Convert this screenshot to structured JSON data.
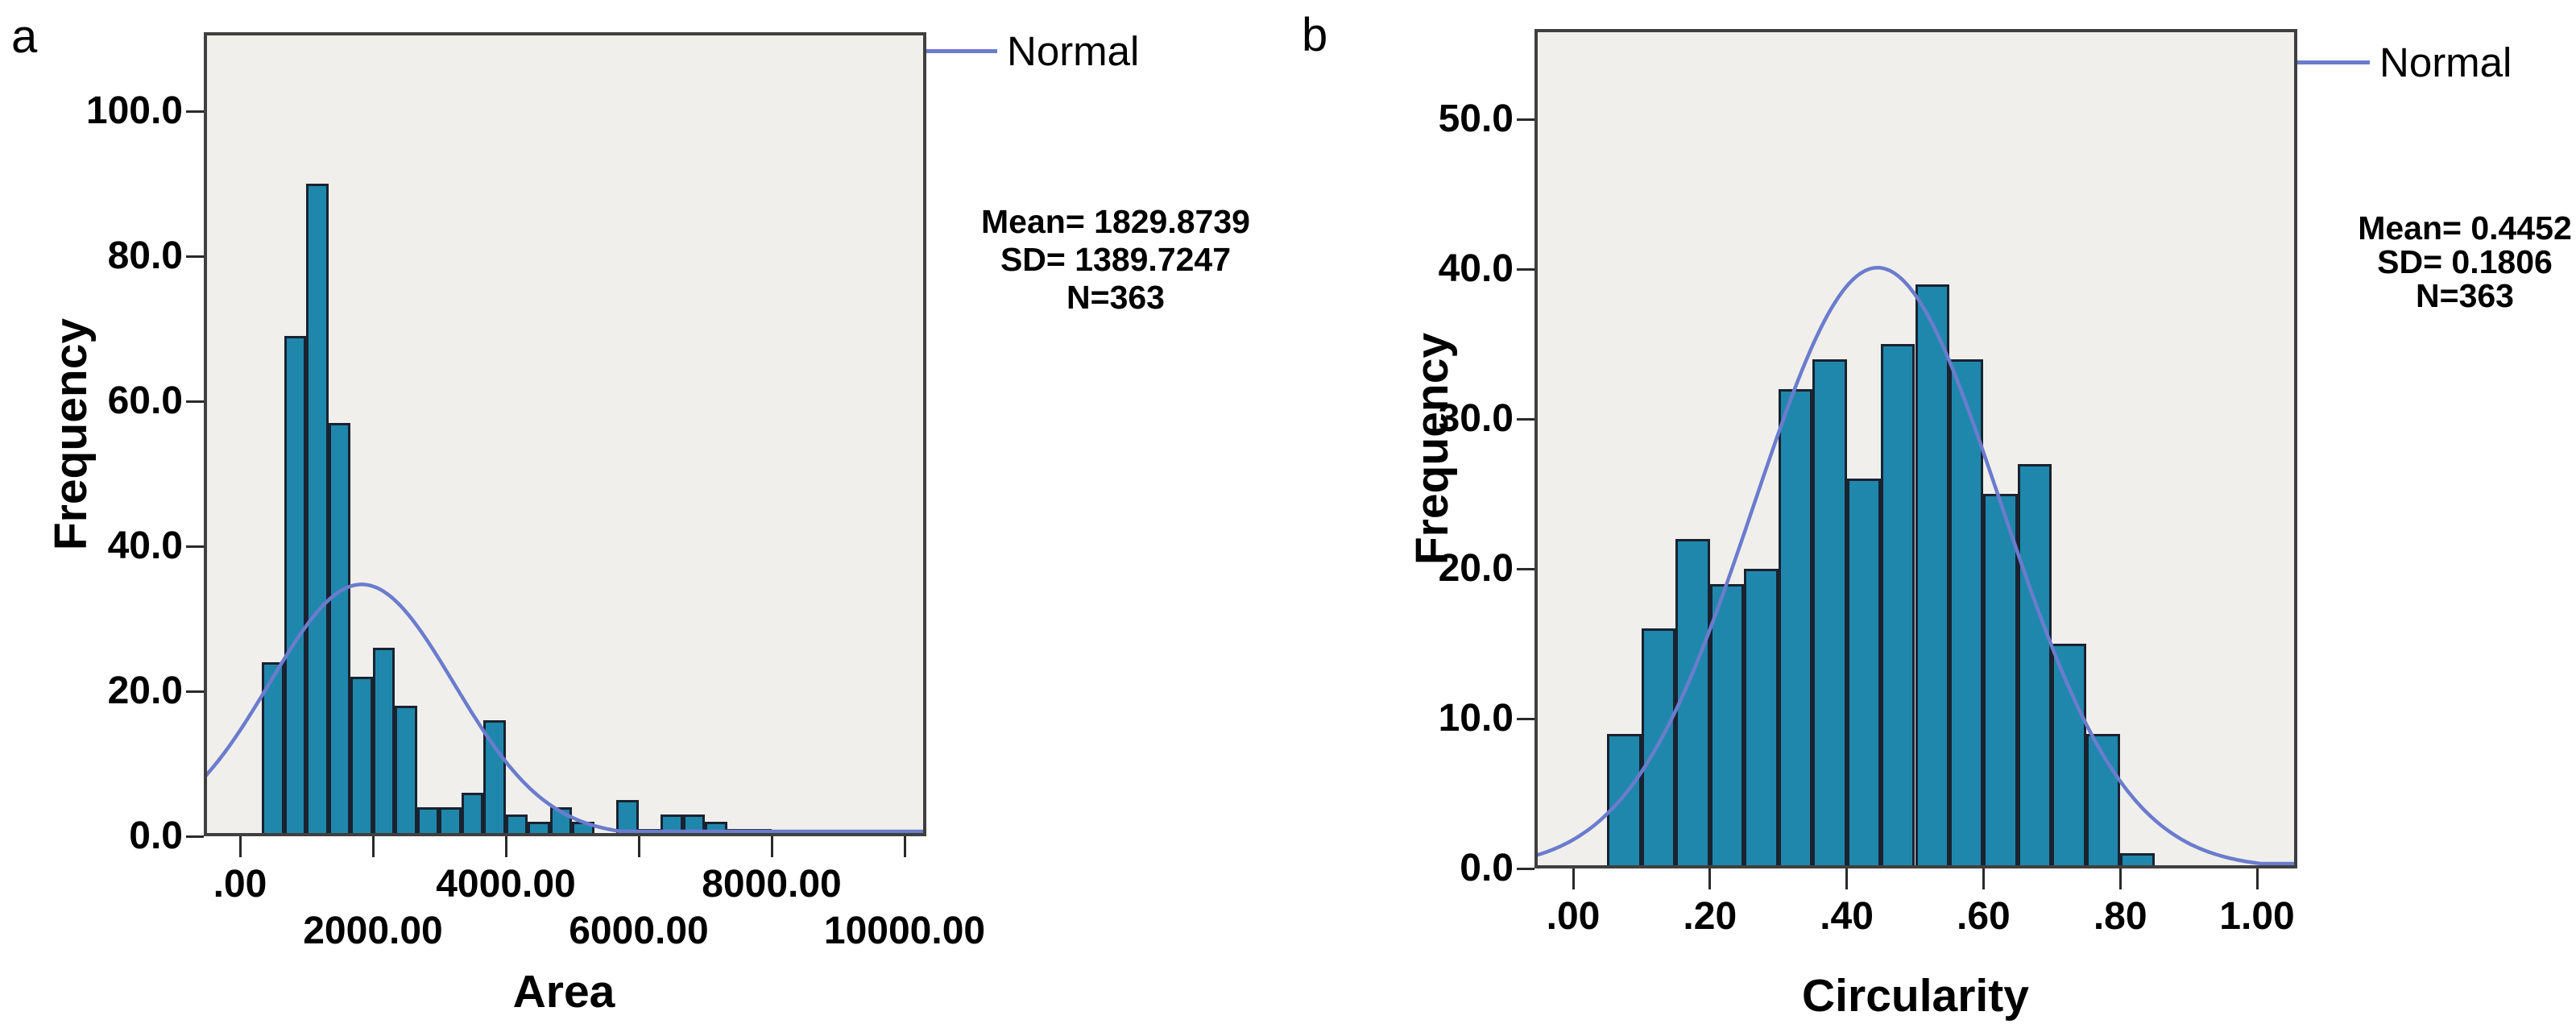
{
  "colors": {
    "bar_fill": "#1f87ab",
    "bar_border": "#1a2230",
    "normal_curve": "#6b7ccd",
    "plot_background": "#f0efec",
    "plot_border": "#3f3f3f",
    "text": "#000000"
  },
  "chart_data": [
    {
      "type": "bar",
      "subtype": "histogram-with-normal-curve",
      "letter": "a",
      "xlabel": "Area",
      "ylabel": "Frequency",
      "legend_label": "Normal",
      "legend_position": "top-right-outside",
      "stats": [
        "Mean= 1829.8739",
        "SD= 1389.7247",
        "N=363"
      ],
      "mean": 1829.8739,
      "sd": 1389.7247,
      "n": 363,
      "bin_start": 333.33,
      "bin_width": 333.33,
      "counts": [
        24,
        69,
        90,
        57,
        22,
        26,
        18,
        4,
        4,
        6,
        16,
        3,
        2,
        4,
        2,
        0,
        5,
        1,
        3,
        3,
        2,
        1,
        1
      ],
      "x_ticks": [
        {
          "v": 0,
          "l": ".00"
        },
        {
          "v": 2000,
          "l": "2000.00"
        },
        {
          "v": 4000,
          "l": "4000.00"
        },
        {
          "v": 6000,
          "l": "6000.00"
        },
        {
          "v": 8000,
          "l": "8000.00"
        },
        {
          "v": 10000,
          "l": "10000.00"
        }
      ],
      "y_ticks": [
        {
          "v": 0,
          "l": "0.0"
        },
        {
          "v": 20,
          "l": "20.0"
        },
        {
          "v": 40,
          "l": "40.0"
        },
        {
          "v": 60,
          "l": "60.0"
        },
        {
          "v": 80,
          "l": "80.0"
        },
        {
          "v": 100,
          "l": "100.0"
        }
      ],
      "x_range": [
        -545,
        10330
      ],
      "y_range": [
        0,
        111
      ],
      "grid": false,
      "x_label_stagger": true
    },
    {
      "type": "bar",
      "subtype": "histogram-with-normal-curve",
      "letter": "b",
      "xlabel": "Circularity",
      "ylabel": "Frequency",
      "legend_label": "Normal",
      "legend_position": "top-right-outside",
      "stats": [
        "Mean= 0.4452",
        "SD= 0.1806",
        "N=363"
      ],
      "mean": 0.4452,
      "sd": 0.1806,
      "n": 363,
      "bin_start": 0.05,
      "bin_width": 0.05,
      "counts": [
        9,
        16,
        22,
        19,
        20,
        32,
        34,
        26,
        35,
        39,
        34,
        25,
        27,
        15,
        9,
        1
      ],
      "x_ticks": [
        {
          "v": 0,
          "l": ".00"
        },
        {
          "v": 0.2,
          "l": ".20"
        },
        {
          "v": 0.4,
          "l": ".40"
        },
        {
          "v": 0.6,
          "l": ".60"
        },
        {
          "v": 0.8,
          "l": ".80"
        },
        {
          "v": 1.0,
          "l": "1.00"
        }
      ],
      "y_ticks": [
        {
          "v": 0,
          "l": "0.0"
        },
        {
          "v": 10,
          "l": "10.0"
        },
        {
          "v": 20,
          "l": "20.0"
        },
        {
          "v": 30,
          "l": "30.0"
        },
        {
          "v": 40,
          "l": "40.0"
        },
        {
          "v": 50,
          "l": "50.0"
        }
      ],
      "x_range": [
        -0.057,
        1.06
      ],
      "y_range": [
        0,
        56
      ],
      "grid": false,
      "x_label_stagger": false
    }
  ]
}
